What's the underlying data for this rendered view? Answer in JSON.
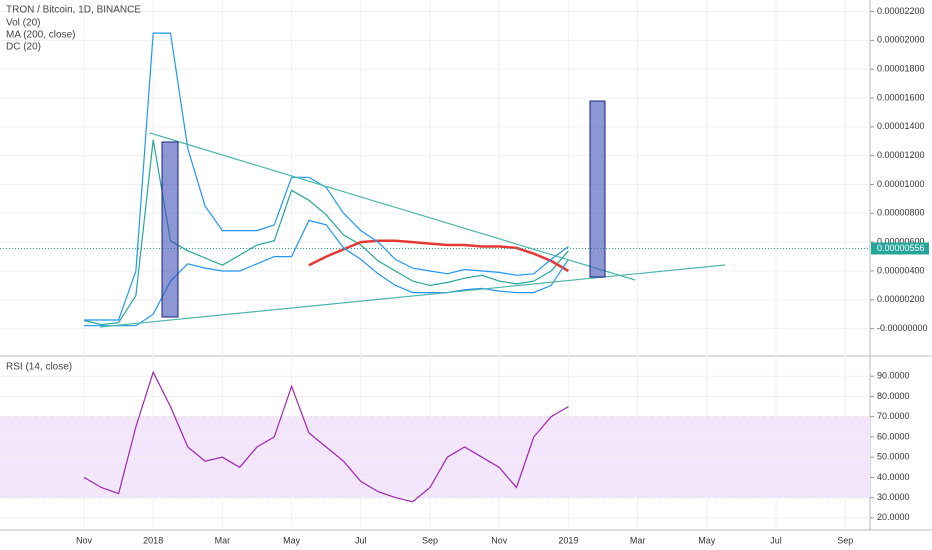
{
  "chart_data": [
    {
      "type": "line",
      "title": "TRON / Bitcoin, 1D, BINANCE",
      "indicators": [
        "Vol (20)",
        "MA (200, close)",
        "DC (20)"
      ],
      "categories": [
        "Nov",
        null,
        null,
        null,
        "2018",
        null,
        null,
        null,
        "Mar",
        null,
        null,
        null,
        "May",
        null,
        null,
        null,
        "Jul",
        null,
        null,
        null,
        "Sep",
        null,
        null,
        null,
        "Nov",
        null,
        null,
        null,
        "2019",
        null,
        null,
        null,
        "Mar",
        null,
        null,
        null,
        "May",
        null,
        null,
        null,
        "Jul",
        null,
        null,
        null,
        "Sep",
        null
      ],
      "series": [
        {
          "color": "#26a69a",
          "values": [
            5.6e-07,
            2.8e-07,
            4.2e-07,
            2.3e-06,
            1.31e-05,
            6.1e-06,
            5.4e-06,
            4.9e-06,
            4.4e-06,
            5.1e-06,
            5.8e-06,
            6.1e-06,
            9.6e-06,
            8.9e-06,
            7.9e-06,
            6.5e-06,
            5.8e-06,
            4.7e-06,
            4e-06,
            3.3e-06,
            3e-06,
            3.2e-06,
            3.5e-06,
            3.7e-06,
            3.3e-06,
            3.1e-06,
            3.3e-06,
            4e-06,
            5.4e-06,
            null,
            null,
            null,
            null,
            null,
            null,
            null,
            null,
            null,
            null,
            null,
            null,
            null,
            null,
            null,
            null,
            null
          ]
        },
        {
          "color": "#e53935",
          "values": [
            null,
            null,
            null,
            null,
            null,
            null,
            null,
            null,
            null,
            null,
            null,
            null,
            null,
            4.4e-06,
            5e-06,
            5.5e-06,
            6e-06,
            6.1e-06,
            6.1e-06,
            6e-06,
            5.9e-06,
            5.8e-06,
            5.8e-06,
            5.7e-06,
            5.7e-06,
            5.6e-06,
            5.2e-06,
            4.7e-06,
            4e-06,
            null,
            null,
            null,
            null,
            null,
            null,
            null,
            null,
            null,
            null,
            null,
            null,
            null,
            null,
            null,
            null,
            null
          ]
        },
        {
          "color": "#2196f3",
          "values": [
            6e-07,
            6e-07,
            6e-07,
            4e-06,
            2.05e-05,
            2.05e-05,
            1.25e-05,
            8.5e-06,
            6.8e-06,
            6.8e-06,
            6.8e-06,
            7.2e-06,
            1.05e-05,
            1.05e-05,
            9.8e-06,
            8e-06,
            6.8e-06,
            6e-06,
            4.8e-06,
            4.2e-06,
            4e-06,
            3.8e-06,
            4.1e-06,
            4e-06,
            3.9e-06,
            3.7e-06,
            3.8e-06,
            4.8e-06,
            5.7e-06,
            null,
            null,
            null,
            null,
            null,
            null,
            null,
            null,
            null,
            null,
            null,
            null,
            null,
            null,
            null,
            null,
            null
          ]
        },
        {
          "color": "#2196f3",
          "values": [
            2e-07,
            2e-07,
            2e-07,
            2e-07,
            1e-06,
            3.3e-06,
            4.5e-06,
            4.2e-06,
            4e-06,
            4e-06,
            4.5e-06,
            5e-06,
            5e-06,
            7.5e-06,
            7.2e-06,
            5.6e-06,
            4.8e-06,
            3.8e-06,
            3e-06,
            2.5e-06,
            2.5e-06,
            2.5e-06,
            2.7e-06,
            2.8e-06,
            2.6e-06,
            2.5e-06,
            2.5e-06,
            3e-06,
            4.8e-06,
            null,
            null,
            null,
            null,
            null,
            null,
            null,
            null,
            null,
            null,
            null,
            null,
            null,
            null,
            null,
            null,
            null
          ]
        }
      ],
      "last_price": {
        "value": 5.56e-06,
        "label": "0.00000556"
      },
      "ylim": [
        -1.9e-06,
        2.28e-05
      ],
      "yticks": [
        {
          "value": 0,
          "label": "-0.00000000"
        },
        {
          "value": 2e-06,
          "label": "0.00000200"
        },
        {
          "value": 4e-06,
          "label": "0.00000400"
        },
        {
          "value": 6e-06,
          "label": "0.00000600"
        },
        {
          "value": 8e-06,
          "label": "0.00000800"
        },
        {
          "value": 1e-05,
          "label": "0.00001000"
        },
        {
          "value": 1.2e-05,
          "label": "0.00001200"
        },
        {
          "value": 1.4e-05,
          "label": "0.00001400"
        },
        {
          "value": 1.6e-05,
          "label": "0.00001600"
        },
        {
          "value": 1.8e-05,
          "label": "0.00001800"
        },
        {
          "value": 2e-05,
          "label": "0.00002000"
        },
        {
          "value": 2.2e-05,
          "label": "0.00002200"
        }
      ],
      "grid": true
    },
    {
      "type": "line",
      "title": "RSI (14, close)",
      "series": [
        {
          "color": "#9c27b0",
          "values": [
            40,
            35,
            32,
            65,
            92,
            75,
            55,
            48,
            50,
            45,
            55,
            60,
            85,
            62,
            55,
            48,
            38,
            33,
            30,
            28,
            35,
            50,
            55,
            50,
            45,
            35,
            60,
            70,
            75,
            null,
            null,
            null,
            null,
            null,
            null,
            null,
            null,
            null,
            null,
            null,
            null,
            null,
            null,
            null,
            null,
            null
          ]
        }
      ],
      "band": [
        30,
        70
      ],
      "band_color": "#f3e5fb",
      "ylim": [
        14,
        99
      ],
      "yticks": [
        {
          "value": 20,
          "label": "20.0000"
        },
        {
          "value": 30,
          "label": "30.0000"
        },
        {
          "value": 40,
          "label": "40.0000"
        },
        {
          "value": 50,
          "label": "50.0000"
        },
        {
          "value": 60,
          "label": "60.0000"
        },
        {
          "value": 70,
          "label": "70.0000"
        },
        {
          "value": 80,
          "label": "80.0000"
        },
        {
          "value": 90,
          "label": "90.0000"
        }
      ],
      "grid": true
    }
  ]
}
